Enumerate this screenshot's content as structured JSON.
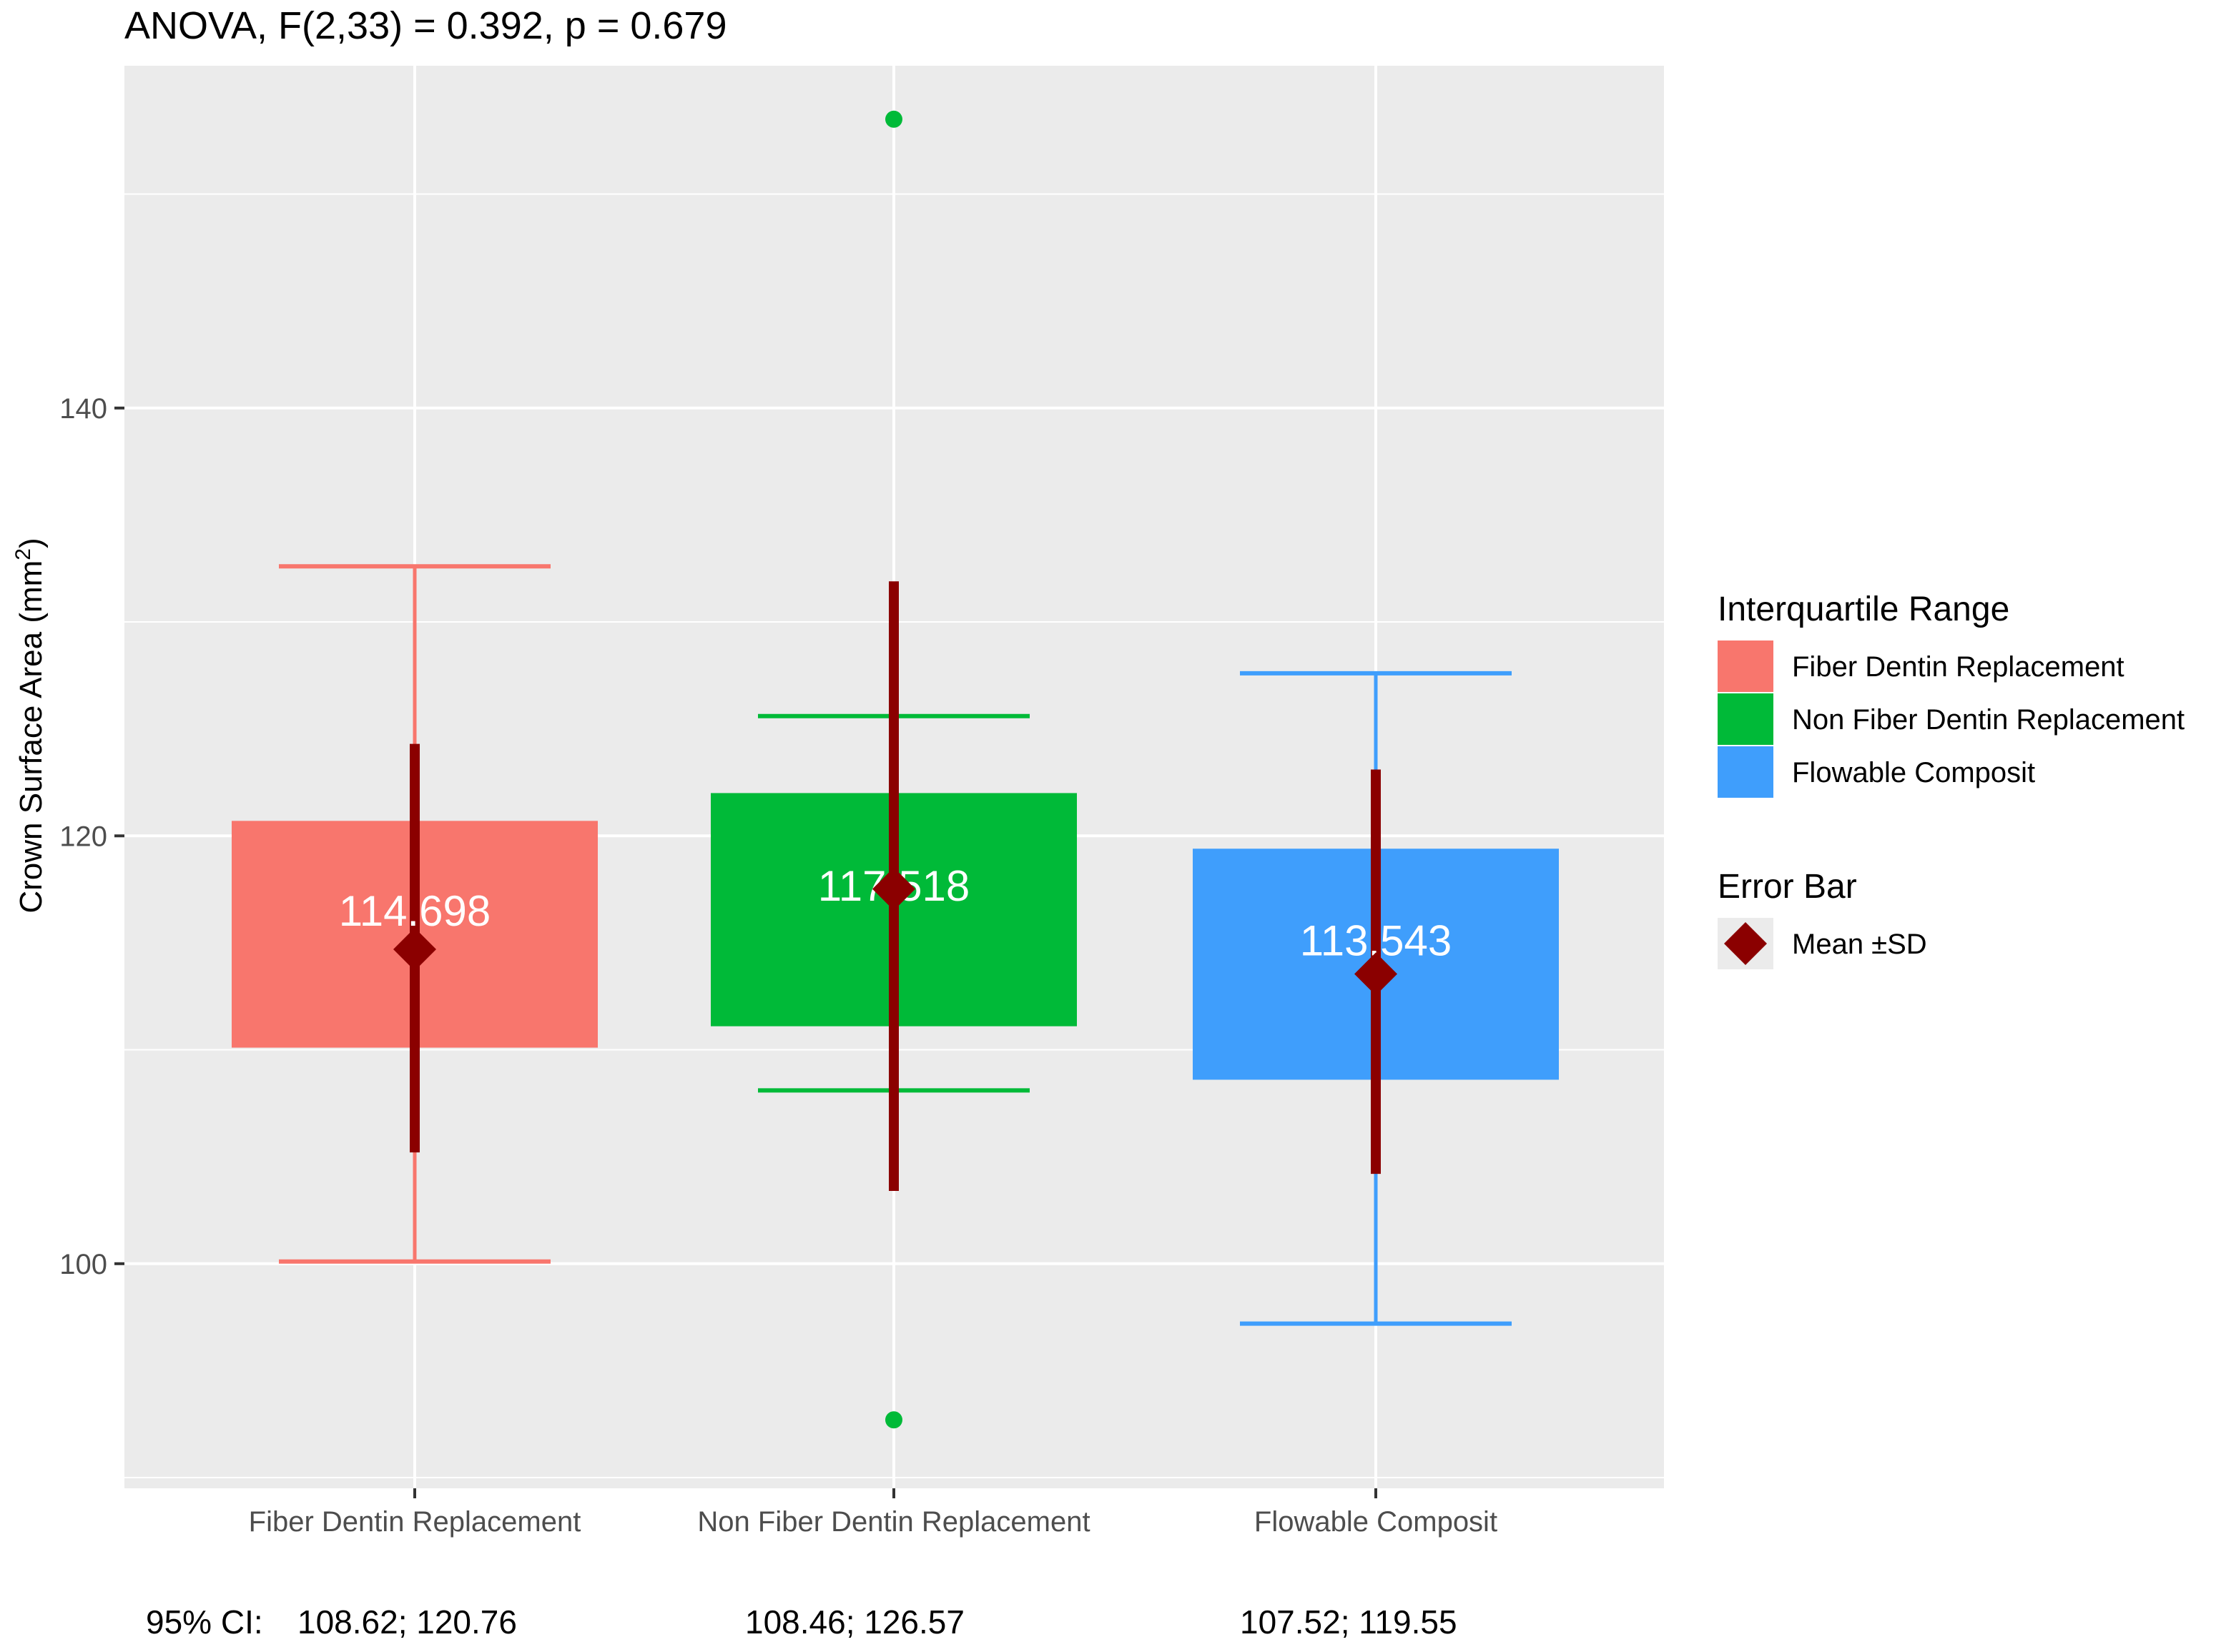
{
  "chart_data": {
    "type": "boxplot",
    "title": "ANOVA, F(2,33) = 0.392, p = 0.679",
    "ylabel": "Crown Surface Area (mm",
    "ylabel_sup": "2",
    "ylabel_close": ")",
    "xlabel": "",
    "ylim": [
      89.5,
      156
    ],
    "yticks": [
      100,
      120,
      140
    ],
    "ytick_labels": [
      "100",
      "120",
      "140"
    ],
    "minor_gridlines": [
      90,
      110,
      130,
      150
    ],
    "grid": true,
    "colors": {
      "panel": "#ebebeb",
      "grid": "#ffffff",
      "mean": "#8b0000",
      "sd_bar": "#8b0000",
      "box_label": "#ffffff",
      "text": "#000000",
      "axis_text": "#4d4d4d"
    },
    "categories": [
      "Fiber Dentin Replacement",
      "Non Fiber Dentin Replacement",
      "Flowable Composit"
    ],
    "groups": [
      {
        "name": "Fiber Dentin Replacement",
        "color": "#f8766d",
        "whisker_low": 100.1,
        "q1": 110.1,
        "q3": 120.7,
        "whisker_high": 132.6,
        "mean": 114.698,
        "mean_label": "114.698",
        "sd_low": 105.2,
        "sd_high": 124.3,
        "outliers": [],
        "ci_label": "108.62; 120.76"
      },
      {
        "name": "Non Fiber Dentin Replacement",
        "color": "#00ba38",
        "whisker_low": 108.1,
        "q1": 111.1,
        "q3": 122.0,
        "whisker_high": 125.6,
        "mean": 117.518,
        "mean_label": "117.518",
        "sd_low": 103.4,
        "sd_high": 131.9,
        "outliers": [
          153.5,
          92.7
        ],
        "ci_label": "108.46; 126.57"
      },
      {
        "name": "Flowable Composit",
        "color": "#3f9efc",
        "whisker_low": 97.2,
        "q1": 108.6,
        "q3": 119.4,
        "whisker_high": 127.6,
        "mean": 113.543,
        "mean_label": "113.543",
        "sd_low": 104.2,
        "sd_high": 123.1,
        "outliers": [],
        "ci_label": "107.52; 119.55"
      }
    ],
    "ci_prefix": "95% CI:",
    "legend": {
      "position": "right",
      "iqr_title": "Interquartile Range",
      "iqr_items": [
        "Fiber Dentin Replacement",
        "Non Fiber Dentin Replacement",
        "Flowable Composit"
      ],
      "error_title": "Error Bar",
      "error_items": [
        "Mean   ±SD"
      ]
    }
  }
}
